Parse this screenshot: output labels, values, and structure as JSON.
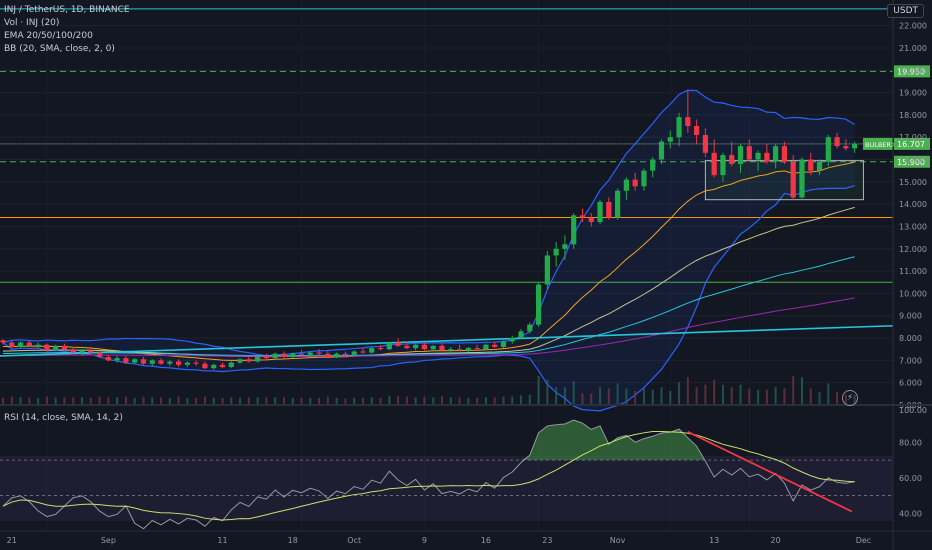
{
  "legend": {
    "symbol": "INJ / TetherUS, 1D, BINANCE",
    "volume": "Vol · INJ (20)",
    "ema": "EMA 20/50/100/200",
    "bb": "BB (20, SMA, close, 2, 0)"
  },
  "rsi_legend": "RSI (14, close, SMA, 14, 2)",
  "currency": "USDT",
  "alert_icon": "lightning-icon",
  "colors": {
    "background": "#131722",
    "up": "#26a69a",
    "candle_up": "#22ab4a",
    "candle_down": "#f23645",
    "bb": "#2962ff",
    "ema20": "#f7a21b",
    "ema50": "#c9c48c",
    "ema100": "#26c6da",
    "ema200": "#9c27b0",
    "rsi_line": "#9598a1",
    "rsi_ma": "#c6e26a",
    "trendline": "#f23645",
    "support_green": "#4caf50",
    "support_orange": "#ff9800"
  },
  "chart_data": {
    "type": "candlestick",
    "price_axis": {
      "ticks": [
        "22.000",
        "21.000",
        "20.000",
        "19.000",
        "18.000",
        "17.000",
        "16.000",
        "15.000",
        "14.000",
        "13.000",
        "12.000",
        "11.000",
        "10.000",
        "9.000",
        "8.000",
        "7.000",
        "6.000",
        "5.000"
      ],
      "range": [
        5,
        22.7
      ]
    },
    "rsi_axis": {
      "ticks": [
        "100.00",
        "80.00",
        "60.00",
        "40.00"
      ],
      "range": [
        30,
        100
      ]
    },
    "x_labels": [
      "21",
      "Sep",
      "11",
      "18",
      "Oct",
      "9",
      "16",
      "23",
      "Nov",
      "13",
      "20",
      "Dec"
    ],
    "price_levels": [
      {
        "value": 19.95,
        "style": "dashed",
        "color": "#4caf50",
        "label": "19.950"
      },
      {
        "value": 15.9,
        "style": "dashed",
        "color": "#4caf50",
        "label": "15.900"
      },
      {
        "value": 16.7,
        "style": "solid",
        "color": "#4a4e59",
        "label": ""
      },
      {
        "value": 13.4,
        "style": "solid",
        "color": "#ff9800",
        "label": ""
      },
      {
        "value": 10.5,
        "style": "solid",
        "color": "#4caf50",
        "label": ""
      },
      {
        "value": 22.75,
        "style": "solid",
        "color": "#26c6da",
        "label": ""
      }
    ],
    "last_price_label": "BULBERX",
    "last_price_value": "16.707",
    "rsi_levels": [
      70,
      50,
      30
    ],
    "candles": [
      [
        7.9,
        7.95,
        7.7,
        7.8
      ],
      [
        7.8,
        7.9,
        7.55,
        7.6
      ],
      [
        7.6,
        7.85,
        7.55,
        7.8
      ],
      [
        7.8,
        7.9,
        7.6,
        7.65
      ],
      [
        7.65,
        7.8,
        7.55,
        7.7
      ],
      [
        7.7,
        7.75,
        7.4,
        7.45
      ],
      [
        7.45,
        7.7,
        7.4,
        7.65
      ],
      [
        7.65,
        7.75,
        7.45,
        7.5
      ],
      [
        7.5,
        7.6,
        7.3,
        7.35
      ],
      [
        7.35,
        7.5,
        7.2,
        7.45
      ],
      [
        7.45,
        7.55,
        7.3,
        7.35
      ],
      [
        7.35,
        7.45,
        7.1,
        7.15
      ],
      [
        7.15,
        7.25,
        6.95,
        7.0
      ],
      [
        7.0,
        7.2,
        6.9,
        7.1
      ],
      [
        7.1,
        7.2,
        6.85,
        6.9
      ],
      [
        6.9,
        7.1,
        6.85,
        7.05
      ],
      [
        7.05,
        7.15,
        6.8,
        6.85
      ],
      [
        6.85,
        7.05,
        6.75,
        7.0
      ],
      [
        7.0,
        7.1,
        6.8,
        6.85
      ],
      [
        6.85,
        7.0,
        6.75,
        6.95
      ],
      [
        6.95,
        7.05,
        6.7,
        6.8
      ],
      [
        6.8,
        6.95,
        6.7,
        6.9
      ],
      [
        6.9,
        7.0,
        6.75,
        6.85
      ],
      [
        6.85,
        6.95,
        6.6,
        6.65
      ],
      [
        6.65,
        6.85,
        6.6,
        6.8
      ],
      [
        6.8,
        6.9,
        6.65,
        6.7
      ],
      [
        6.7,
        6.95,
        6.65,
        6.9
      ],
      [
        6.9,
        7.1,
        6.85,
        7.05
      ],
      [
        7.05,
        7.2,
        6.9,
        6.95
      ],
      [
        6.95,
        7.2,
        6.9,
        7.15
      ],
      [
        7.15,
        7.3,
        7.0,
        7.1
      ],
      [
        7.1,
        7.35,
        7.05,
        7.3
      ],
      [
        7.3,
        7.4,
        7.1,
        7.15
      ],
      [
        7.15,
        7.35,
        7.1,
        7.3
      ],
      [
        7.3,
        7.45,
        7.2,
        7.25
      ],
      [
        7.25,
        7.4,
        7.15,
        7.35
      ],
      [
        7.35,
        7.5,
        7.25,
        7.3
      ],
      [
        7.3,
        7.45,
        7.1,
        7.15
      ],
      [
        7.15,
        7.35,
        7.1,
        7.3
      ],
      [
        7.3,
        7.4,
        7.2,
        7.25
      ],
      [
        7.25,
        7.45,
        7.2,
        7.4
      ],
      [
        7.4,
        7.55,
        7.3,
        7.35
      ],
      [
        7.35,
        7.6,
        7.3,
        7.55
      ],
      [
        7.55,
        7.7,
        7.45,
        7.5
      ],
      [
        7.5,
        7.85,
        7.45,
        7.8
      ],
      [
        7.8,
        8.0,
        7.6,
        7.65
      ],
      [
        7.65,
        7.85,
        7.5,
        7.55
      ],
      [
        7.55,
        7.75,
        7.45,
        7.7
      ],
      [
        7.7,
        7.8,
        7.45,
        7.5
      ],
      [
        7.5,
        7.7,
        7.4,
        7.65
      ],
      [
        7.65,
        7.8,
        7.4,
        7.45
      ],
      [
        7.45,
        7.6,
        7.3,
        7.5
      ],
      [
        7.5,
        7.7,
        7.4,
        7.45
      ],
      [
        7.45,
        7.6,
        7.35,
        7.55
      ],
      [
        7.55,
        7.7,
        7.45,
        7.5
      ],
      [
        7.5,
        7.75,
        7.45,
        7.7
      ],
      [
        7.7,
        7.85,
        7.55,
        7.6
      ],
      [
        7.6,
        7.9,
        7.55,
        7.85
      ],
      [
        7.85,
        8.1,
        7.75,
        8.0
      ],
      [
        8.0,
        8.4,
        7.95,
        8.3
      ],
      [
        8.3,
        8.7,
        8.2,
        8.6
      ],
      [
        8.6,
        10.5,
        8.5,
        10.4
      ],
      [
        10.4,
        11.9,
        10.2,
        11.7
      ],
      [
        11.7,
        12.3,
        11.2,
        12.0
      ],
      [
        12.0,
        12.6,
        11.5,
        12.2
      ],
      [
        12.2,
        13.6,
        12.0,
        13.5
      ],
      [
        13.5,
        13.8,
        13.2,
        13.4
      ],
      [
        13.4,
        13.6,
        13.0,
        13.2
      ],
      [
        13.2,
        14.2,
        13.1,
        14.1
      ],
      [
        14.1,
        14.3,
        13.3,
        13.4
      ],
      [
        13.4,
        14.7,
        13.3,
        14.6
      ],
      [
        14.6,
        15.2,
        14.2,
        15.1
      ],
      [
        15.1,
        15.4,
        14.6,
        14.8
      ],
      [
        14.8,
        15.6,
        14.6,
        15.5
      ],
      [
        15.5,
        16.1,
        15.2,
        16.0
      ],
      [
        16.0,
        16.9,
        15.8,
        16.8
      ],
      [
        16.8,
        17.3,
        16.5,
        17.0
      ],
      [
        17.0,
        18.1,
        16.6,
        17.9
      ],
      [
        17.9,
        19.1,
        17.2,
        17.5
      ],
      [
        17.5,
        17.8,
        16.7,
        17.1
      ],
      [
        17.1,
        17.4,
        16.1,
        16.3
      ],
      [
        16.3,
        16.9,
        15.2,
        15.3
      ],
      [
        15.3,
        16.3,
        15.0,
        16.2
      ],
      [
        16.2,
        16.8,
        15.7,
        15.8
      ],
      [
        15.8,
        16.7,
        15.4,
        16.6
      ],
      [
        16.6,
        16.9,
        15.9,
        16.0
      ],
      [
        16.0,
        16.4,
        15.5,
        16.3
      ],
      [
        16.3,
        16.7,
        15.8,
        15.9
      ],
      [
        15.9,
        16.7,
        15.6,
        16.6
      ],
      [
        16.6,
        16.8,
        15.8,
        15.9
      ],
      [
        15.9,
        16.2,
        14.2,
        14.3
      ],
      [
        14.3,
        16.1,
        14.2,
        16.0
      ],
      [
        16.0,
        16.3,
        15.3,
        15.5
      ],
      [
        15.5,
        16.0,
        15.3,
        15.9
      ],
      [
        15.9,
        17.1,
        15.7,
        17.0
      ],
      [
        17.0,
        17.2,
        16.5,
        16.6
      ],
      [
        16.6,
        16.9,
        16.4,
        16.5
      ],
      [
        16.5,
        16.8,
        16.3,
        16.7
      ]
    ],
    "box": {
      "from_index": 80,
      "to_index": 96,
      "top": 15.95,
      "bottom": 14.2
    },
    "rsi_trendline": {
      "from_index": 78,
      "to_index": 96,
      "from_value": 86,
      "to_value": 41
    }
  }
}
